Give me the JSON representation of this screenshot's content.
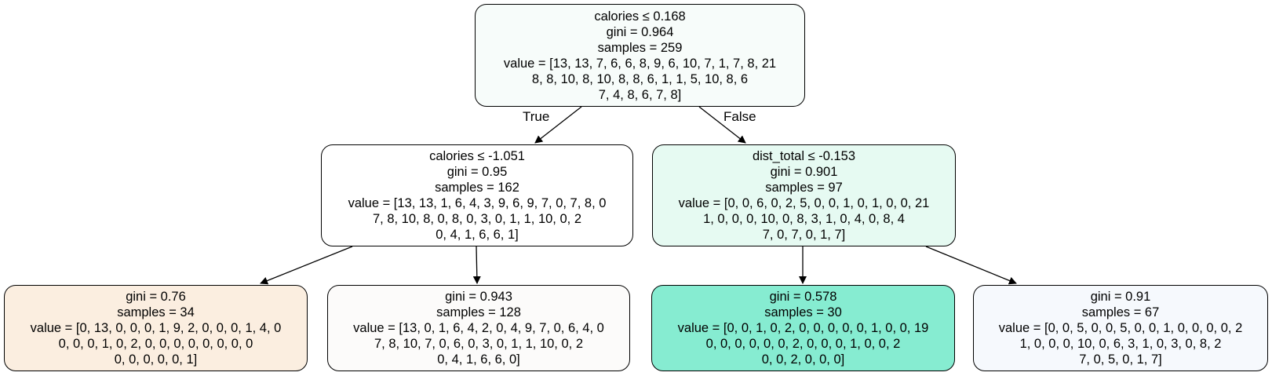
{
  "tree": {
    "nodes": [
      {
        "id": "n0",
        "fill": "#f7fcfa",
        "lines": [
          "calories ≤ 0.168",
          "gini = 0.964",
          "samples = 259",
          "value = [13, 13, 7, 6, 6, 8, 9, 6, 10, 7, 1, 7, 8, 21",
          "8, 8, 10, 8, 10, 8, 8, 6, 1, 1, 5, 10, 8, 6",
          "7, 4, 8, 6, 7, 8]"
        ]
      },
      {
        "id": "n1",
        "fill": "#ffffff",
        "lines": [
          "calories ≤ -1.051",
          "gini = 0.95",
          "samples = 162",
          "value = [13, 13, 1, 6, 4, 3, 9, 6, 9, 7, 0, 7, 8, 0",
          "7, 8, 10, 8, 0, 8, 0, 3, 0, 1, 1, 10, 0, 2",
          "0, 4, 1, 6, 6, 1]"
        ]
      },
      {
        "id": "n2",
        "fill": "#e6faf2",
        "lines": [
          "dist_total ≤ -0.153",
          "gini = 0.901",
          "samples = 97",
          "value = [0, 0, 6, 0, 2, 5, 0, 0, 1, 0, 1, 0, 0, 21",
          "1, 0, 0, 0, 10, 0, 8, 3, 1, 0, 4, 0, 8, 4",
          "7, 0, 7, 0, 1, 7]"
        ]
      },
      {
        "id": "n3",
        "fill": "#fbeee0",
        "lines": [
          "gini = 0.76",
          "samples = 34",
          "value = [0, 13, 0, 0, 0, 1, 9, 2, 0, 0, 0, 1, 4, 0",
          "0, 0, 0, 1, 0, 2, 0, 0, 0, 0, 0, 0, 0, 0",
          "0, 0, 0, 0, 0, 1]"
        ]
      },
      {
        "id": "n4",
        "fill": "#fcfbfa",
        "lines": [
          "gini = 0.943",
          "samples = 128",
          "value = [13, 0, 1, 6, 4, 2, 0, 4, 9, 7, 0, 6, 4, 0",
          "7, 8, 10, 7, 0, 6, 0, 3, 0, 1, 1, 10, 0, 2",
          "0, 4, 1, 6, 6, 0]"
        ]
      },
      {
        "id": "n5",
        "fill": "#86ecd1",
        "lines": [
          "gini = 0.578",
          "samples = 30",
          "value = [0, 0, 1, 0, 2, 0, 0, 0, 0, 0, 1, 0, 0, 19",
          "0, 0, 0, 0, 0, 0, 2, 0, 0, 0, 1, 0, 0, 2",
          "0, 0, 2, 0, 0, 0]"
        ]
      },
      {
        "id": "n6",
        "fill": "#f6f9fd",
        "lines": [
          "gini = 0.91",
          "samples = 67",
          "value = [0, 0, 5, 0, 0, 5, 0, 0, 1, 0, 0, 0, 0, 2",
          "1, 0, 0, 0, 10, 0, 6, 3, 1, 0, 3, 0, 8, 2",
          "7, 0, 5, 0, 1, 7]"
        ]
      }
    ],
    "edges": [
      {
        "from": "n0",
        "to": "n1",
        "label": "True"
      },
      {
        "from": "n0",
        "to": "n2",
        "label": "False"
      },
      {
        "from": "n1",
        "to": "n3"
      },
      {
        "from": "n1",
        "to": "n4"
      },
      {
        "from": "n2",
        "to": "n5"
      },
      {
        "from": "n2",
        "to": "n6"
      }
    ],
    "colors": {
      "stroke": "#000000",
      "text": "#000000"
    }
  }
}
